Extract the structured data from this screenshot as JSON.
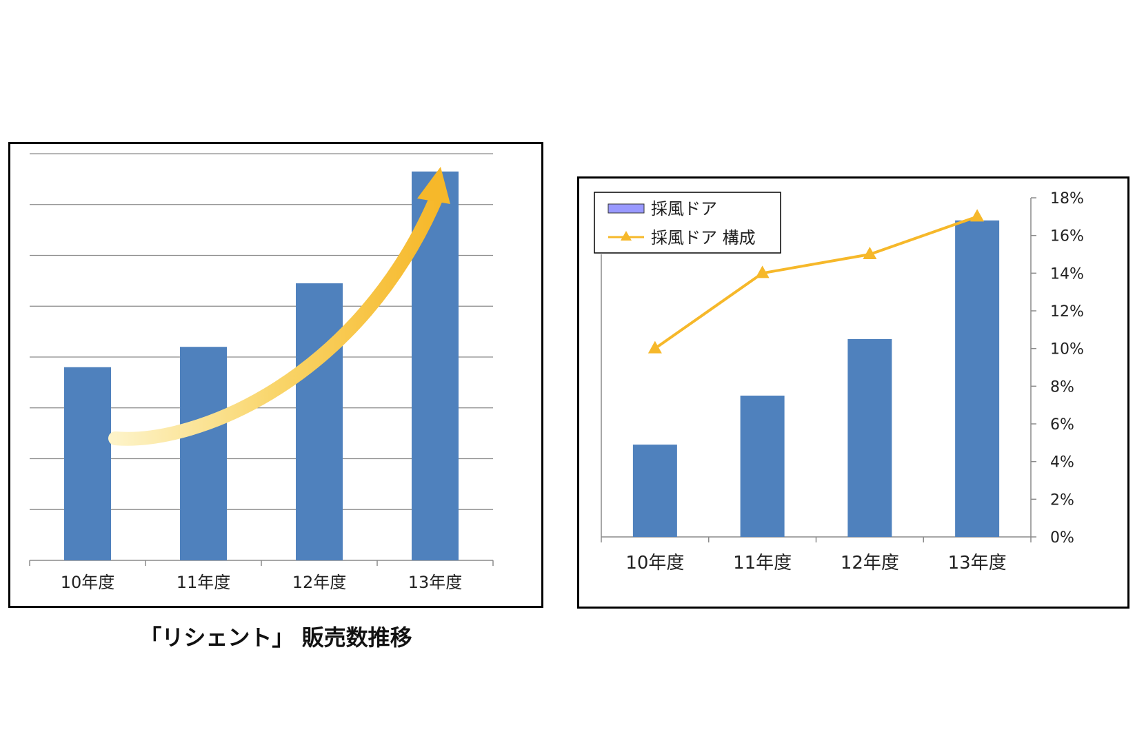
{
  "chart_data": [
    {
      "type": "bar",
      "title": "「リシェント」 販売数推移",
      "categories": [
        "10年度",
        "11年度",
        "12年度",
        "13年度"
      ],
      "values": [
        3.8,
        4.2,
        5.45,
        7.65
      ],
      "ylim": [
        0,
        8
      ],
      "yticks_shown": false,
      "grid": true,
      "annotation": "upward-trend-arrow",
      "colors": {
        "bar": "#4f81bd",
        "arrow": "#f6b82a"
      }
    },
    {
      "type": "bar+line",
      "categories": [
        "10年度",
        "11年度",
        "12年度",
        "13年度"
      ],
      "series": [
        {
          "name": "採風ドア",
          "type": "bar",
          "values": [
            4.9,
            7.5,
            10.5,
            16.8
          ]
        },
        {
          "name": "採風ドア 構成",
          "type": "line",
          "axis": "right",
          "values": [
            10,
            14,
            15,
            17
          ]
        }
      ],
      "y_right": {
        "ylim": [
          0,
          18
        ],
        "ticks": [
          "0%",
          "2%",
          "4%",
          "6%",
          "8%",
          "10%",
          "12%",
          "14%",
          "16%",
          "18%"
        ]
      },
      "legend": "top-left",
      "grid": false,
      "colors": {
        "bar": "#4f81bd",
        "line": "#f6b82a",
        "legend_bar": "#9999ff"
      }
    }
  ]
}
